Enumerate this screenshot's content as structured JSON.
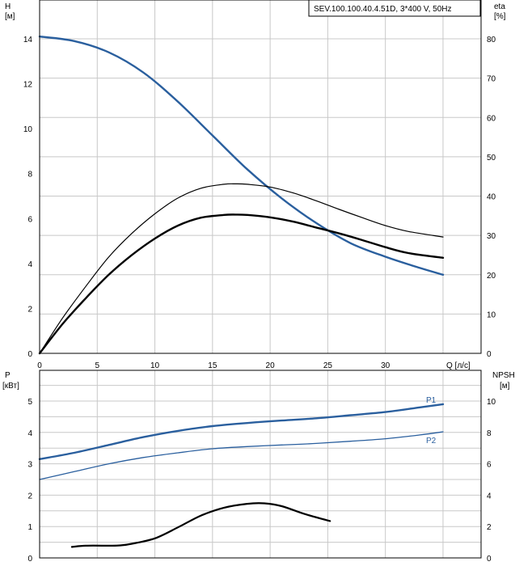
{
  "title": "SEV.100.100.40.4.51D, 3*400 V, 50Hz",
  "colors": {
    "blue": "#2a5f9e",
    "black": "#000000",
    "grid": "#c8c8c8"
  },
  "top_chart": {
    "left_axis_label": [
      "H",
      "[м]"
    ],
    "right_axis_label": [
      "eta",
      "[%]"
    ],
    "x_label": "Q [л/с]"
  },
  "bottom_chart": {
    "left_axis_label": [
      "P",
      "[кВт]"
    ],
    "right_axis_label": [
      "NPSH",
      "[м]"
    ]
  },
  "chart_data": [
    {
      "type": "line",
      "x": [
        0,
        5,
        10,
        15,
        20,
        25,
        30,
        35
      ],
      "xlim": [
        0,
        35
      ],
      "x_ticks": [
        0,
        5,
        10,
        15,
        20,
        25,
        30
      ],
      "ylim": [
        0,
        16
      ],
      "y_ticks": [
        0,
        2,
        4,
        6,
        8,
        10,
        12,
        14
      ],
      "y2lim": [
        0,
        80
      ],
      "y2_ticks": [
        0,
        10,
        20,
        30,
        40,
        50,
        60,
        70,
        80
      ],
      "series": [
        {
          "key": "H",
          "axis": "left",
          "color": "#2a5f9e",
          "width": 2.4,
          "x": [
            0,
            3,
            6,
            9,
            12,
            15,
            18,
            21,
            24,
            27,
            30,
            33,
            35
          ],
          "y": [
            14.1,
            13.9,
            13.4,
            12.5,
            11.2,
            9.7,
            8.2,
            6.9,
            5.8,
            4.9,
            4.3,
            3.8,
            3.5
          ]
        },
        {
          "key": "eta_thin",
          "axis": "right",
          "color": "#000000",
          "width": 1.2,
          "x": [
            0,
            2,
            4,
            6,
            8,
            10,
            12,
            14,
            16,
            17,
            18,
            20,
            22,
            24,
            26,
            28,
            30,
            32,
            35
          ],
          "y": [
            0,
            9,
            17,
            24.5,
            30.5,
            35.5,
            39.5,
            42,
            43,
            43.1,
            43,
            42.3,
            40.8,
            38.8,
            36.6,
            34.5,
            32.5,
            31,
            29.6
          ]
        },
        {
          "key": "eta_thick",
          "axis": "right",
          "color": "#000000",
          "width": 2.4,
          "x": [
            0,
            2,
            4,
            6,
            8,
            10,
            12,
            14,
            16,
            17,
            18,
            20,
            22,
            24,
            26,
            28,
            30,
            32,
            35
          ],
          "y": [
            0,
            7.5,
            14,
            20,
            25,
            29.2,
            32.5,
            34.5,
            35.2,
            35.3,
            35.2,
            34.6,
            33.5,
            32,
            30.5,
            28.8,
            27,
            25.5,
            24.3
          ]
        }
      ]
    },
    {
      "type": "line",
      "xlim": [
        0,
        35
      ],
      "ylim": [
        0,
        6
      ],
      "y_ticks": [
        0,
        1,
        2,
        3,
        4,
        5
      ],
      "y2lim": [
        0,
        12
      ],
      "y2_ticks": [
        0,
        2,
        4,
        6,
        8,
        10
      ],
      "series": [
        {
          "name": "P1",
          "key": "P1",
          "axis": "left",
          "color": "#2a5f9e",
          "width": 2.4,
          "x": [
            0,
            3,
            6,
            9,
            12,
            15,
            18,
            21,
            24,
            27,
            30,
            33,
            35
          ],
          "y": [
            3.15,
            3.35,
            3.6,
            3.85,
            4.05,
            4.2,
            4.3,
            4.38,
            4.45,
            4.55,
            4.65,
            4.8,
            4.9
          ]
        },
        {
          "name": "P2",
          "key": "P2",
          "axis": "left",
          "color": "#2a5f9e",
          "width": 1.3,
          "x": [
            0,
            3,
            6,
            9,
            12,
            15,
            18,
            21,
            24,
            27,
            30,
            33,
            35
          ],
          "y": [
            2.5,
            2.75,
            3.0,
            3.2,
            3.35,
            3.48,
            3.55,
            3.6,
            3.65,
            3.72,
            3.8,
            3.92,
            4.02
          ]
        },
        {
          "key": "NPSH",
          "axis": "right",
          "color": "#000000",
          "width": 2.2,
          "x": [
            2.8,
            4,
            6,
            7,
            8,
            10,
            12,
            14,
            16,
            18,
            19.5,
            21,
            23,
            25.2
          ],
          "y": [
            0.7,
            0.78,
            0.78,
            0.8,
            0.9,
            1.25,
            1.95,
            2.7,
            3.2,
            3.45,
            3.48,
            3.3,
            2.8,
            2.35
          ]
        }
      ]
    }
  ]
}
